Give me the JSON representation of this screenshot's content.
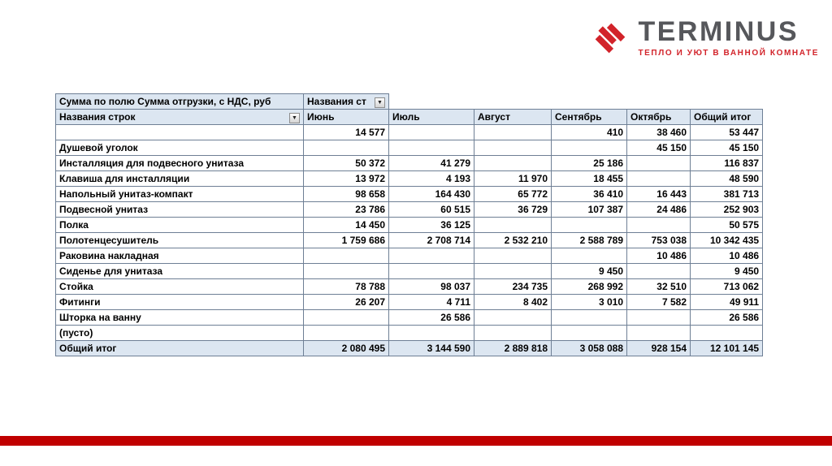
{
  "logo": {
    "brand": "TERMINUS",
    "tagline": "ТЕПЛО И УЮТ В ВАННОЙ КОМНАТЕ"
  },
  "pivot": {
    "value_field_label": "Сумма по полю Сумма отгрузки, с НДС, руб",
    "column_field_label": "Названия ст",
    "row_header": "Названия строк",
    "month_columns": [
      "Июнь",
      "Июль",
      "Август",
      "Сентябрь",
      "Октябрь",
      "Общий итог"
    ],
    "rows": [
      {
        "label": "",
        "values": [
          "14 577",
          "",
          "",
          "410",
          "38 460",
          "53 447"
        ]
      },
      {
        "label": "Душевой уголок",
        "values": [
          "",
          "",
          "",
          "",
          "45 150",
          "45 150"
        ]
      },
      {
        "label": "Инсталляция для подвесного унитаза",
        "values": [
          "50 372",
          "41 279",
          "",
          "25 186",
          "",
          "116 837"
        ]
      },
      {
        "label": "Клавиша для инсталляции",
        "values": [
          "13 972",
          "4 193",
          "11 970",
          "18 455",
          "",
          "48 590"
        ]
      },
      {
        "label": "Напольный унитаз-компакт",
        "values": [
          "98 658",
          "164 430",
          "65 772",
          "36 410",
          "16 443",
          "381 713"
        ]
      },
      {
        "label": "Подвесной унитаз",
        "values": [
          "23 786",
          "60 515",
          "36 729",
          "107 387",
          "24 486",
          "252 903"
        ]
      },
      {
        "label": "Полка",
        "values": [
          "14 450",
          "36 125",
          "",
          "",
          "",
          "50 575"
        ]
      },
      {
        "label": "Полотенцесушитель",
        "values": [
          "1 759 686",
          "2 708 714",
          "2 532 210",
          "2 588 789",
          "753 038",
          "10 342 435"
        ]
      },
      {
        "label": "Раковина накладная",
        "values": [
          "",
          "",
          "",
          "",
          "10 486",
          "10 486"
        ]
      },
      {
        "label": "Сиденье для унитаза",
        "values": [
          "",
          "",
          "",
          "9 450",
          "",
          "9 450"
        ]
      },
      {
        "label": "Стойка",
        "values": [
          "78 788",
          "98 037",
          "234 735",
          "268 992",
          "32 510",
          "713 062"
        ]
      },
      {
        "label": "Фитинги",
        "values": [
          "26 207",
          "4 711",
          "8 402",
          "3 010",
          "7 582",
          "49 911"
        ]
      },
      {
        "label": "Шторка на ванну",
        "values": [
          "",
          "26 586",
          "",
          "",
          "",
          "26 586"
        ]
      },
      {
        "label": "(пусто)",
        "values": [
          "",
          "",
          "",
          "",
          "",
          ""
        ]
      }
    ],
    "grand_total": {
      "label": "Общий итог",
      "values": [
        "2 080 495",
        "3 144 590",
        "2 889 818",
        "3 058 088",
        "928 154",
        "12 101 145"
      ]
    },
    "dropdown_glyph": "▼"
  },
  "colors": {
    "accent_red": "#C00000",
    "logo_red": "#D2232A",
    "header_fill": "#DCE6F1",
    "border": "#6E7F95"
  }
}
